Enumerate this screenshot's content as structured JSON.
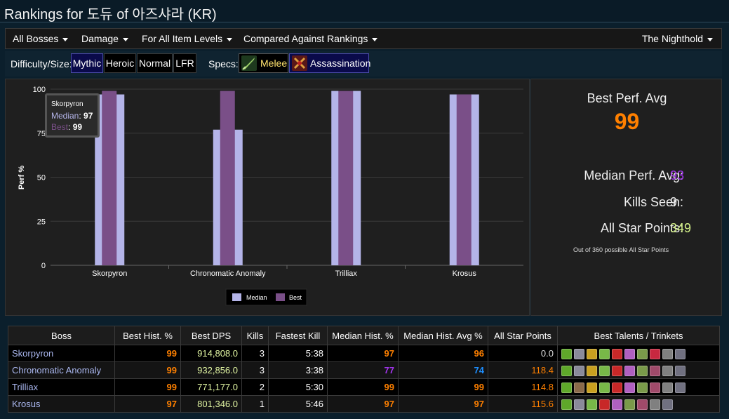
{
  "page": {
    "title": "Rankings for 도듀 of 아즈샤라 (KR)"
  },
  "menu": {
    "items": [
      {
        "label": "All Bosses"
      },
      {
        "label": "Damage"
      },
      {
        "label": "For All Item Levels"
      },
      {
        "label": "Compared Against Rankings"
      }
    ],
    "zone": "The Nighthold"
  },
  "filters": {
    "difficulty_label": "Difficulty/Size:",
    "difficulties": [
      "Mythic",
      "Heroic",
      "Normal",
      "LFR"
    ],
    "selected_difficulty": "Mythic",
    "specs_label": "Specs:",
    "specs": [
      {
        "label": "Melee",
        "icon": "melee-dagger-icon",
        "color": "#ffe36e"
      },
      {
        "label": "Assassination",
        "icon": "assassination-icon",
        "color": "#ffffff"
      }
    ]
  },
  "chart_data": {
    "type": "bar",
    "categories": [
      "Skorpyron",
      "Chronomatic Anomaly",
      "Trilliax",
      "Krosus"
    ],
    "series": [
      {
        "name": "Median",
        "values": [
          97,
          77,
          99,
          97
        ],
        "color": "#b4b4e8"
      },
      {
        "name": "Best",
        "values": [
          99,
          99,
          99,
          97
        ],
        "color": "#7a4f88"
      }
    ],
    "ylabel": "Perf %",
    "ylim": [
      0,
      100
    ],
    "yticks": [
      0,
      25,
      50,
      75,
      100
    ],
    "grid": true,
    "legend": "bottom-center",
    "tooltip": {
      "title": "Skorpyron",
      "median_label": "Median",
      "median_value": "97",
      "best_label": "Best",
      "best_value": "99"
    }
  },
  "stats": {
    "best_perf_label": "Best Perf. Avg",
    "best_perf_value": "99",
    "median_label": "Median Perf. Avg:",
    "median_value": "93",
    "kills_label": "Kills Seen:",
    "kills_value": "9",
    "allstar_label": "All Star Points:",
    "allstar_value": "349",
    "allstar_note": "Out of 360 possible All Star Points"
  },
  "table": {
    "headers": [
      "Boss",
      "Best Hist. %",
      "Best DPS",
      "Kills",
      "Fastest Kill",
      "Median Hist. %",
      "Median Hist. Avg %",
      "All Star Points",
      "Best Talents / Trinkets"
    ],
    "rows": [
      {
        "boss": "Skorpyron",
        "best_hist": "99",
        "best_dps": "914,808.0",
        "kills": "3",
        "fastest": "5:38",
        "median_hist": "97",
        "median_avg": "96",
        "allstar": "0.0",
        "colors": {
          "best_hist": "#ff8000",
          "median_hist": "#ff8000",
          "median_avg": "#ff8000",
          "allstar": "#dddddd"
        }
      },
      {
        "boss": "Chronomatic Anomaly",
        "best_hist": "99",
        "best_dps": "932,856.0",
        "kills": "3",
        "fastest": "3:38",
        "median_hist": "77",
        "median_avg": "74",
        "allstar": "118.4",
        "colors": {
          "best_hist": "#ff8000",
          "median_hist": "#a335ee",
          "median_avg": "#1e8fff",
          "allstar": "#ff8000"
        }
      },
      {
        "boss": "Trilliax",
        "best_hist": "99",
        "best_dps": "771,177.0",
        "kills": "2",
        "fastest": "5:30",
        "median_hist": "99",
        "median_avg": "99",
        "allstar": "114.8",
        "colors": {
          "best_hist": "#ff8000",
          "median_hist": "#ff8000",
          "median_avg": "#ff8000",
          "allstar": "#ff8000"
        }
      },
      {
        "boss": "Krosus",
        "best_hist": "97",
        "best_dps": "801,346.0",
        "kills": "1",
        "fastest": "5:46",
        "median_hist": "97",
        "median_avg": "97",
        "allstar": "115.6",
        "colors": {
          "best_hist": "#ff8000",
          "median_hist": "#ff8000",
          "median_avg": "#ff8000",
          "allstar": "#ff8000"
        }
      }
    ],
    "icon_sets": [
      [
        "#5fa82a",
        "#8a8a9a",
        "#c8a020",
        "#78b848",
        "#c82828",
        "#b060c0",
        "#7a9a4a",
        "#c82840",
        "#808080",
        "#707080"
      ],
      [
        "#5fa82a",
        "#8a8a9a",
        "#c8a020",
        "#78b848",
        "#c82828",
        "#b060c0",
        "#7a9a4a",
        "#a04a6a",
        "#808080",
        "#707080"
      ],
      [
        "#5fa82a",
        "#8a6a4a",
        "#c8a020",
        "#78b848",
        "#c82828",
        "#b060c0",
        "#7a9a4a",
        "#a04a6a",
        "#808080",
        "#707080"
      ],
      [
        "#5fa82a",
        "#8a8a9a",
        "#78b848",
        "#c82828",
        "#b060c0",
        "#7a9a4a",
        "#a04a6a",
        "#808080",
        "#707080"
      ]
    ]
  },
  "colors": {
    "median_bar": "#b4b4e8",
    "best_bar": "#7a4f88",
    "orange": "#ff8000",
    "purple": "#a335ee",
    "dps_green": "#e1f5a2",
    "allstar_green": "#d6f48a"
  }
}
